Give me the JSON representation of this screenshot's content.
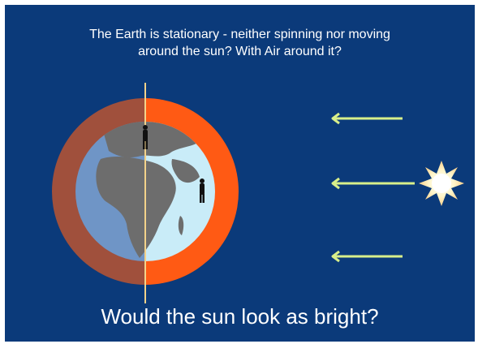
{
  "question": {
    "line1": "The Earth is stationary - neither spinning nor moving",
    "line2": "around the sun? With Air around it?"
  },
  "bottom_question": "Would the sun look as bright?",
  "colors": {
    "background": "#0b3a7a",
    "atmosphere_night": "#a0503c",
    "atmosphere_day": "#ff5a14",
    "ocean_night": "#6f95c6",
    "ocean_day": "#c9ecf8",
    "land": "#6d6d6d",
    "terminator_line": "#f3d28a",
    "arrow": "#d8ef8a",
    "sun": "#fff3c8"
  },
  "icons": [
    "person-icon",
    "person-icon",
    "sun-icon",
    "arrow-left-icon"
  ]
}
